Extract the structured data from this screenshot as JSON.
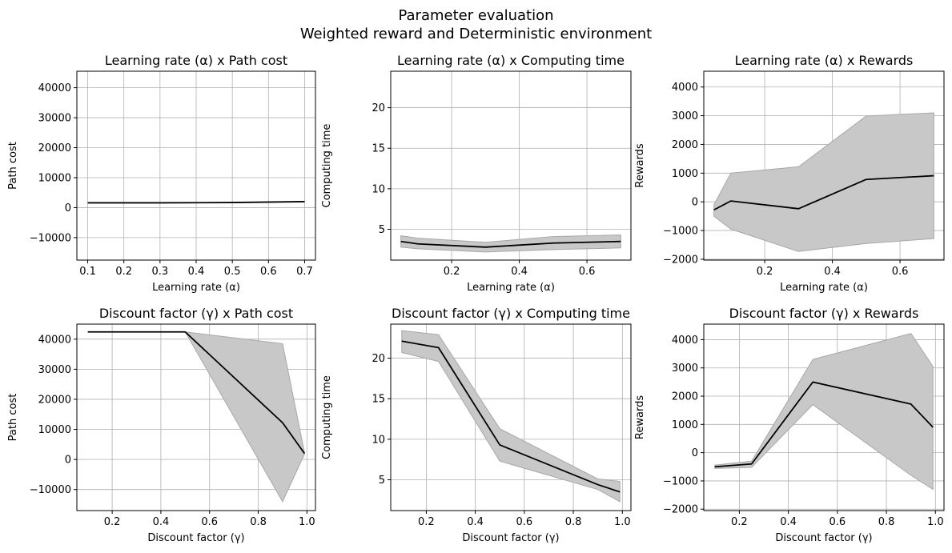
{
  "figure": {
    "title_line1": "Parameter evaluation",
    "title_line2": "Weighted reward and Deterministic environment"
  },
  "chart_data": [
    {
      "type": "line",
      "title": "Learning rate (α) x Path cost",
      "xlabel": "Learning rate (α)",
      "ylabel": "Path cost",
      "xlim": [
        0.07,
        0.73
      ],
      "ylim": [
        -17500,
        45500
      ],
      "xticks": [
        0.1,
        0.2,
        0.3,
        0.4,
        0.5,
        0.6,
        0.7
      ],
      "xtick_labels": [
        "0.1",
        "0.2",
        "0.3",
        "0.4",
        "0.5",
        "0.6",
        "0.7"
      ],
      "yticks": [
        -10000,
        0,
        10000,
        20000,
        30000,
        40000
      ],
      "ytick_labels": [
        "−10000",
        "0",
        "10000",
        "20000",
        "30000",
        "40000"
      ],
      "grid": true,
      "x": [
        0.1,
        0.3,
        0.5,
        0.7
      ],
      "y": [
        1600,
        1600,
        1700,
        2000
      ],
      "lower": [
        1600,
        1600,
        1700,
        2000
      ],
      "upper": [
        1600,
        1600,
        1700,
        2000
      ],
      "line_color": "#000000",
      "band_color": "#c8c8c8"
    },
    {
      "type": "line",
      "title": "Learning rate (α) x Computing time",
      "xlabel": "Learning rate (α)",
      "ylabel": "Computing time",
      "xlim": [
        0.02,
        0.73
      ],
      "ylim": [
        1.2,
        24.5
      ],
      "xticks": [
        0.2,
        0.4,
        0.6
      ],
      "xtick_labels": [
        "0.2",
        "0.4",
        "0.6"
      ],
      "yticks": [
        5,
        10,
        15,
        20
      ],
      "ytick_labels": [
        "5",
        "10",
        "15",
        "20"
      ],
      "grid": true,
      "x": [
        0.05,
        0.1,
        0.3,
        0.5,
        0.7
      ],
      "y": [
        3.5,
        3.2,
        2.8,
        3.3,
        3.5
      ],
      "lower": [
        2.8,
        2.6,
        2.2,
        2.5,
        2.7
      ],
      "upper": [
        4.2,
        3.9,
        3.4,
        4.1,
        4.3
      ],
      "line_color": "#000000",
      "band_color": "#c8c8c8"
    },
    {
      "type": "line",
      "title": "Learning rate (α) x Rewards",
      "xlabel": "Learning rate (α)",
      "ylabel": "Rewards",
      "xlim": [
        0.02,
        0.73
      ],
      "ylim": [
        -2030,
        4550
      ],
      "xticks": [
        0.2,
        0.4,
        0.6
      ],
      "xtick_labels": [
        "0.2",
        "0.4",
        "0.6"
      ],
      "yticks": [
        -2000,
        -1000,
        0,
        1000,
        2000,
        3000,
        4000
      ],
      "ytick_labels": [
        "−2000",
        "−1000",
        "0",
        "1000",
        "2000",
        "3000",
        "4000"
      ],
      "grid": true,
      "x": [
        0.05,
        0.1,
        0.3,
        0.5,
        0.7
      ],
      "y": [
        -280,
        30,
        -240,
        780,
        910
      ],
      "lower": [
        -500,
        -950,
        -1730,
        -1450,
        -1280
      ],
      "upper": [
        -100,
        1000,
        1220,
        2990,
        3100
      ],
      "line_color": "#000000",
      "band_color": "#c8c8c8"
    },
    {
      "type": "line",
      "title": "Discount factor (γ) x Path cost",
      "xlabel": "Discount factor (γ)",
      "ylabel": "Path cost",
      "xlim": [
        0.055,
        1.035
      ],
      "ylim": [
        -17000,
        45000
      ],
      "xticks": [
        0.2,
        0.4,
        0.6,
        0.8,
        1.0
      ],
      "xtick_labels": [
        "0.2",
        "0.4",
        "0.6",
        "0.8",
        "1.0"
      ],
      "yticks": [
        -10000,
        0,
        10000,
        20000,
        30000,
        40000
      ],
      "ytick_labels": [
        "−10000",
        "0",
        "10000",
        "20000",
        "30000",
        "40000"
      ],
      "grid": true,
      "x": [
        0.1,
        0.25,
        0.5,
        0.9,
        0.99
      ],
      "y": [
        42400,
        42400,
        42400,
        12200,
        2000
      ],
      "lower": [
        42400,
        42400,
        42400,
        -14000,
        1800
      ],
      "upper": [
        42400,
        42400,
        42400,
        38500,
        2200
      ],
      "line_color": "#000000",
      "band_color": "#c8c8c8"
    },
    {
      "type": "line",
      "title": "Discount factor (γ) x Computing time",
      "xlabel": "Discount factor (γ)",
      "ylabel": "Computing time",
      "xlim": [
        0.055,
        1.035
      ],
      "ylim": [
        1.2,
        24.2
      ],
      "xticks": [
        0.2,
        0.4,
        0.6,
        0.8,
        1.0
      ],
      "xtick_labels": [
        "0.2",
        "0.4",
        "0.6",
        "0.8",
        "1.0"
      ],
      "yticks": [
        5,
        10,
        15,
        20
      ],
      "ytick_labels": [
        "5",
        "10",
        "15",
        "20"
      ],
      "grid": true,
      "x": [
        0.1,
        0.25,
        0.5,
        0.9,
        0.99
      ],
      "y": [
        22.1,
        21.3,
        9.3,
        4.4,
        3.5
      ],
      "lower": [
        20.7,
        19.6,
        7.3,
        3.8,
        2.3
      ],
      "upper": [
        23.4,
        22.9,
        11.3,
        5.1,
        4.8
      ],
      "line_color": "#000000",
      "band_color": "#c8c8c8"
    },
    {
      "type": "line",
      "title": "Discount factor (γ) x Rewards",
      "xlabel": "Discount factor (γ)",
      "ylabel": "Rewards",
      "xlim": [
        0.055,
        1.035
      ],
      "ylim": [
        -2050,
        4550
      ],
      "xticks": [
        0.2,
        0.4,
        0.6,
        0.8,
        1.0
      ],
      "xtick_labels": [
        "0.2",
        "0.4",
        "0.6",
        "0.8",
        "1.0"
      ],
      "yticks": [
        -2000,
        -1000,
        0,
        1000,
        2000,
        3000,
        4000
      ],
      "ytick_labels": [
        "−2000",
        "−1000",
        "0",
        "1000",
        "2000",
        "3000",
        "4000"
      ],
      "grid": true,
      "x": [
        0.1,
        0.25,
        0.5,
        0.9,
        0.99
      ],
      "y": [
        -500,
        -400,
        2500,
        1720,
        900
      ],
      "lower": [
        -560,
        -520,
        1700,
        -800,
        -1300
      ],
      "upper": [
        -440,
        -300,
        3300,
        4220,
        3050
      ],
      "line_color": "#000000",
      "band_color": "#c8c8c8"
    }
  ]
}
